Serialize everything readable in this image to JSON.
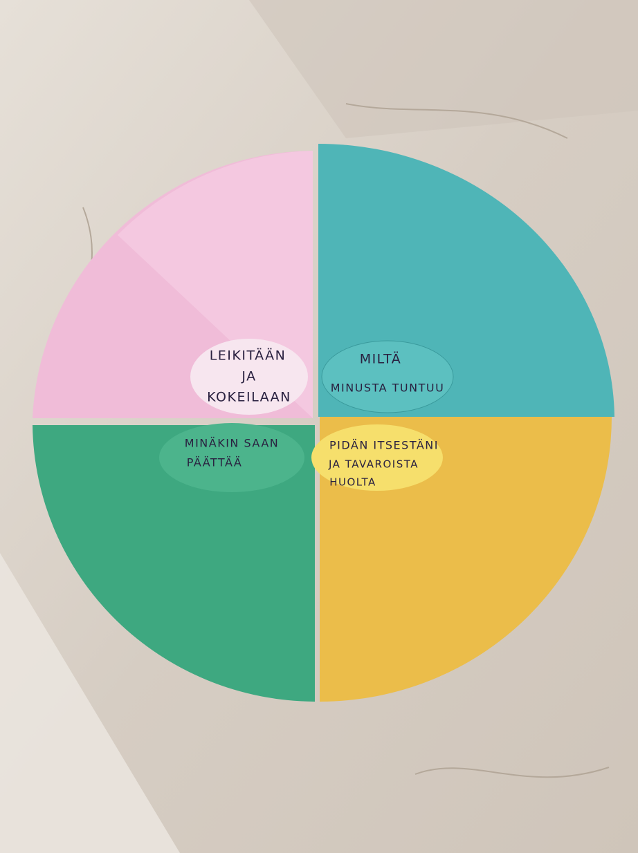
{
  "quadrants": [
    {
      "label": [
        "LEIKITÄÄN",
        "JA",
        "KOKEILAAN"
      ]
    },
    {
      "label": [
        "MILTÄ",
        "MINUSTA TUNTUU"
      ]
    },
    {
      "label": [
        "MINÄKIN SAAN",
        "PÄÄTTÄÄ"
      ]
    },
    {
      "label": [
        "PIDÄN ITSESTÄNI",
        "JA TAVAROISTA",
        "HUOLTA"
      ]
    }
  ]
}
